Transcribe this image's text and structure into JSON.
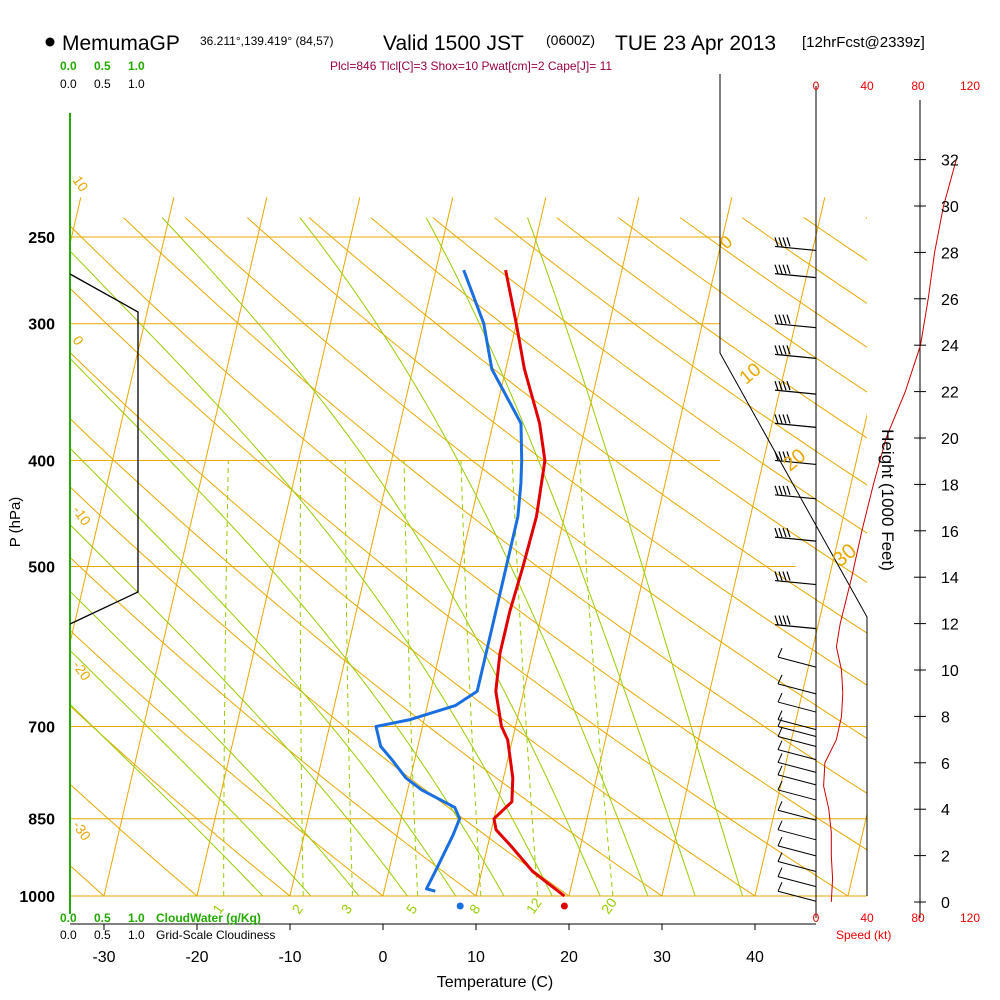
{
  "header": {
    "station": "MemumaGP",
    "coords": "36.211°,139.419° (84,57)",
    "valid_prefix": "Valid 1500 JST",
    "valid_z": "(0600Z)",
    "valid_date": "TUE 23 Apr 2013",
    "fcst": "[12hrFcst@2339z]",
    "indices": "Plcl=846 Tlcl[C]=3 Shox=10 Pwat[cm]=2 Cape[J]= 11"
  },
  "cloud_scale": {
    "top_green": [
      "0.0",
      "0.5",
      "1.0"
    ],
    "top_black": [
      "0.0",
      "0.5",
      "1.0"
    ],
    "bottom_green": [
      "0.0",
      "0.5",
      "1.0"
    ],
    "bottom_green_label": "CloudWater (g/Kg)",
    "bottom_black": [
      "0.0",
      "0.5",
      "1.0"
    ],
    "bottom_black_label": "Grid-Scale Cloudiness"
  },
  "speed_axis": {
    "top_ticks": [
      "0",
      "40",
      "80",
      "120"
    ],
    "bottom_ticks": [
      "0",
      "40",
      "80",
      "120"
    ],
    "label": "Speed (kt)"
  },
  "colors": {
    "isotherm": "#e8a800",
    "mixing_ratio": "#99cc00",
    "temperature": "#e00000",
    "dewpoint": "#1a6fe0",
    "cloud": "#22aa00",
    "speed": "#cc0000",
    "indices": "#990044"
  },
  "chart_data": {
    "type": "skew-t log-p sounding",
    "xlabel": "Temperature (C)",
    "ylabel": "P (hPa)",
    "y2label": "Height (1000 Feet)",
    "x_ticks": [
      -30,
      -20,
      -10,
      0,
      10,
      20,
      30,
      40
    ],
    "pressure_ticks": [
      250,
      300,
      400,
      500,
      700,
      850,
      1000
    ],
    "height_ticks": [
      0,
      2,
      4,
      6,
      8,
      10,
      12,
      14,
      16,
      18,
      20,
      22,
      24,
      26,
      28,
      30,
      32
    ],
    "isotherm_labels": [
      "10",
      "0",
      "-10",
      "-20",
      "-30"
    ],
    "theta_labels": [
      "0",
      "10",
      "20",
      "30"
    ],
    "mixing_ratio_labels": [
      "1",
      "2",
      "3",
      "5",
      "8",
      "12",
      "20"
    ],
    "series": [
      {
        "name": "Temperature",
        "points": [
          {
            "p": 1000,
            "t": 19.5
          },
          {
            "p": 950,
            "t": 15.5
          },
          {
            "p": 900,
            "t": 12.5
          },
          {
            "p": 870,
            "t": 10.5
          },
          {
            "p": 850,
            "t": 10.0
          },
          {
            "p": 820,
            "t": 11.5
          },
          {
            "p": 780,
            "t": 11.0
          },
          {
            "p": 720,
            "t": 9.5
          },
          {
            "p": 700,
            "t": 8.5
          },
          {
            "p": 650,
            "t": 7.0
          },
          {
            "p": 600,
            "t": 6.5
          },
          {
            "p": 550,
            "t": 6.5
          },
          {
            "p": 500,
            "t": 6.8
          },
          {
            "p": 450,
            "t": 7.0
          },
          {
            "p": 400,
            "t": 6.5
          },
          {
            "p": 370,
            "t": 5.0
          },
          {
            "p": 330,
            "t": 2.0
          },
          {
            "p": 300,
            "t": 0.0
          },
          {
            "p": 268,
            "t": -2.5
          }
        ]
      },
      {
        "name": "Dewpoint",
        "points": [
          {
            "p": 990,
            "t": 5.5
          },
          {
            "p": 985,
            "t": 4.5
          },
          {
            "p": 950,
            "t": 5.0
          },
          {
            "p": 880,
            "t": 6.0
          },
          {
            "p": 850,
            "t": 6.3
          },
          {
            "p": 830,
            "t": 5.5
          },
          {
            "p": 800,
            "t": 1.5
          },
          {
            "p": 780,
            "t": -0.5
          },
          {
            "p": 750,
            "t": -2.5
          },
          {
            "p": 730,
            "t": -4.0
          },
          {
            "p": 700,
            "t": -5.0
          },
          {
            "p": 690,
            "t": -1.5
          },
          {
            "p": 670,
            "t": 3.0
          },
          {
            "p": 650,
            "t": 5.0
          },
          {
            "p": 600,
            "t": 5.0
          },
          {
            "p": 500,
            "t": 5.0
          },
          {
            "p": 450,
            "t": 5.0
          },
          {
            "p": 420,
            "t": 4.5
          },
          {
            "p": 400,
            "t": 4.0
          },
          {
            "p": 370,
            "t": 3.0
          },
          {
            "p": 330,
            "t": -1.5
          },
          {
            "p": 300,
            "t": -3.5
          },
          {
            "p": 268,
            "t": -7.0
          }
        ]
      }
    ],
    "surface_points": [
      {
        "name": "surface-temperature",
        "p": 1000,
        "t": 19.5
      },
      {
        "name": "surface-dewpoint",
        "p": 1000,
        "t": 8.3
      }
    ],
    "wind_speed_profile": [
      {
        "h": 0,
        "s": 12
      },
      {
        "h": 1,
        "s": 13
      },
      {
        "h": 2,
        "s": 12
      },
      {
        "h": 3,
        "s": 12
      },
      {
        "h": 4,
        "s": 10
      },
      {
        "h": 5,
        "s": 6
      },
      {
        "h": 6,
        "s": 7
      },
      {
        "h": 7,
        "s": 16
      },
      {
        "h": 8,
        "s": 20
      },
      {
        "h": 9,
        "s": 21
      },
      {
        "h": 10,
        "s": 20
      },
      {
        "h": 11,
        "s": 16
      },
      {
        "h": 12,
        "s": 19
      },
      {
        "h": 14,
        "s": 28
      },
      {
        "h": 16,
        "s": 36
      },
      {
        "h": 18,
        "s": 45
      },
      {
        "h": 20,
        "s": 55
      },
      {
        "h": 22,
        "s": 70
      },
      {
        "h": 24,
        "s": 82
      },
      {
        "h": 26,
        "s": 88
      },
      {
        "h": 28,
        "s": 93
      },
      {
        "h": 30,
        "s": 100
      },
      {
        "h": 32,
        "s": 110
      }
    ],
    "wind_barbs_hpa": [
      255,
      270,
      300,
      320,
      345,
      370,
      400,
      430,
      470,
      515,
      565,
      605,
      640,
      665,
      690,
      700,
      715,
      735,
      755,
      775,
      800,
      835,
      870,
      900,
      930,
      960,
      990
    ]
  }
}
